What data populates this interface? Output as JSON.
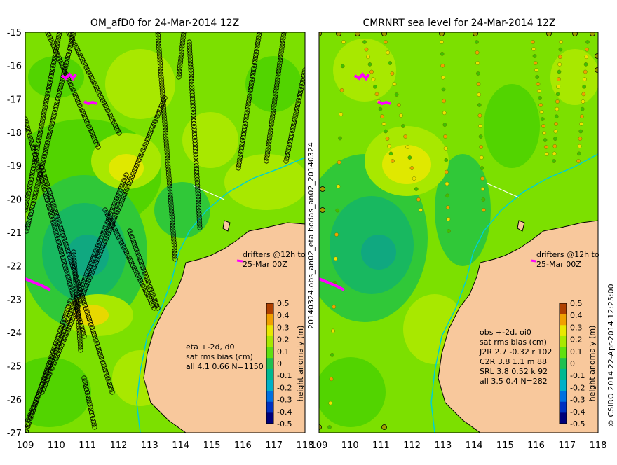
{
  "left_panel": {
    "title": "OM_afD0 for 24-Mar-2014 12Z",
    "drifter_text": [
      "drifters @12h to",
      "25-Mar 00Z"
    ],
    "stats": [
      "eta +-2d, d0",
      "sat rms bias (cm)",
      "all 4.1 0.66 N=1150"
    ]
  },
  "right_panel": {
    "title": "CMRNRT sea level  for 24-Mar-2014 12Z",
    "drifter_text": [
      "drifters @12h to",
      "25-Mar 00Z"
    ],
    "stats": [
      "obs +-2d, oi0",
      "sat rms bias (cm)",
      "J2R   2.7 -0.32 r 102",
      "C2R   3.8 1.1 m 88",
      "SRL   3.8 0.52 k 92",
      "all   3.5 0.4 N=282"
    ]
  },
  "axes": {
    "lon_ticks": [
      "109",
      "110",
      "111",
      "112",
      "113",
      "114",
      "115",
      "116",
      "117",
      "118"
    ],
    "lat_ticks": [
      "-15",
      "-16",
      "-17",
      "-18",
      "-19",
      "-20",
      "-21",
      "-22",
      "-23",
      "-24",
      "-25",
      "-26",
      "-27"
    ],
    "lon_range": [
      109,
      118
    ],
    "lat_range": [
      -27,
      -15
    ]
  },
  "colorbar": {
    "label": "height anomaly (m)",
    "ticks": [
      "0.5",
      "0.4",
      "0.3",
      "0.2",
      "0.1",
      "0",
      "-0.1",
      "-0.2",
      "-0.3",
      "-0.4",
      "-0.5"
    ],
    "range": [
      -0.5,
      0.5
    ],
    "colors": [
      "#00007a",
      "#0030c0",
      "#0070e0",
      "#00b0c8",
      "#00b890",
      "#20c050",
      "#60e010",
      "#a8e800",
      "#e8e800",
      "#f0a000",
      "#b04000"
    ]
  },
  "side_label_vertical": "20140324.obs_an02_eta    bodas_an02_20140324",
  "credit_vertical": "© CSIRO 2014   22-Apr-2014 12:25:00",
  "map_colors": {
    "ocean_mid": "#7ce000",
    "land": "#f8c89c",
    "coast": "#000000",
    "track": "#000000",
    "drifter": "#ff00ff",
    "shelf_line": "#00d0d0"
  }
}
